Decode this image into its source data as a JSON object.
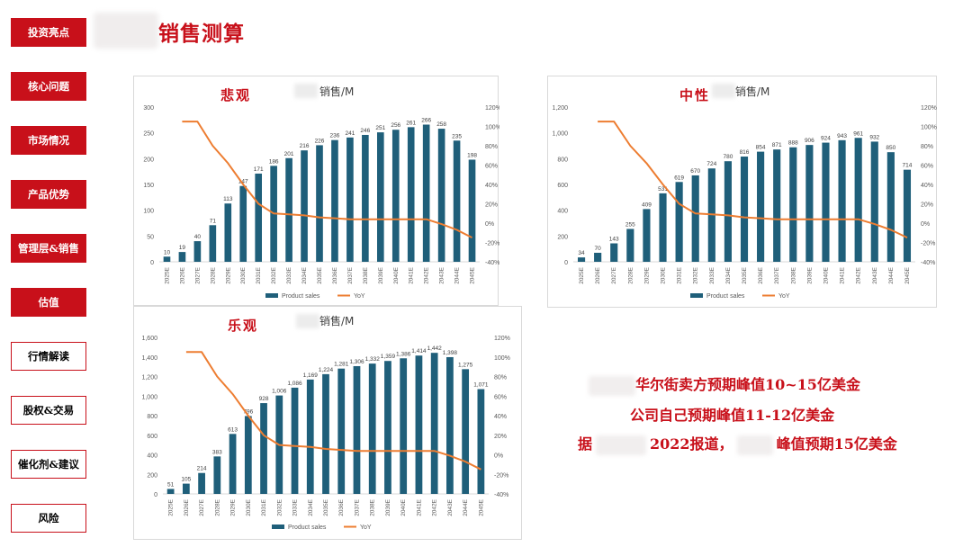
{
  "page": {
    "title": "销售测算"
  },
  "nav": {
    "items": [
      {
        "label": "投资亮点",
        "style": "filled"
      },
      {
        "label": "核心问题",
        "style": "filled"
      },
      {
        "label": "市场情况",
        "style": "filled"
      },
      {
        "label": "产品优势",
        "style": "filled"
      },
      {
        "label": "管理层&销售",
        "style": "filled"
      },
      {
        "label": "估值",
        "style": "filled"
      },
      {
        "label": "行情解读",
        "style": "outline"
      },
      {
        "label": "股权&交易",
        "style": "outline"
      },
      {
        "label": "催化剂&建议",
        "style": "outline"
      },
      {
        "label": "风险",
        "style": "outline"
      }
    ]
  },
  "notes": {
    "line1": "华尔街卖方预期峰值10~15亿美金",
    "line2": "公司自己预期峰值11-12亿美金",
    "line3_prefix": "据",
    "line3_mid": "2022报道，",
    "line3_suffix": "峰值预期15亿美金"
  },
  "colors": {
    "accent": "#c8101a",
    "bar": "#1f5f7a",
    "line": "#ed7d31"
  },
  "chart_data": [
    {
      "id": "pessimistic",
      "scenario": "悲观",
      "type": "bar",
      "title": "销售/M",
      "categories": [
        "2025E",
        "2026E",
        "2027E",
        "2028E",
        "2029E",
        "2030E",
        "2031E",
        "2032E",
        "2033E",
        "2034E",
        "2035E",
        "2036E",
        "2037E",
        "2038E",
        "2039E",
        "2040E",
        "2041E",
        "2042E",
        "2043E",
        "2044E",
        "2045E"
      ],
      "values": [
        10,
        19,
        40,
        71,
        113,
        147,
        171,
        186,
        201,
        216,
        226,
        236,
        241,
        246,
        251,
        256,
        261,
        266,
        258,
        235,
        198
      ],
      "yoy": [
        null,
        105,
        105,
        80,
        62,
        40,
        20,
        10,
        9,
        8,
        6,
        5,
        4,
        4,
        4,
        4,
        4,
        4,
        -1,
        -7,
        -15
      ],
      "ylim": [
        0,
        300
      ],
      "yticks": [
        0,
        50,
        100,
        150,
        200,
        250,
        300
      ],
      "y2lim": [
        -40,
        120
      ],
      "y2ticks": [
        -40,
        -20,
        0,
        20,
        40,
        60,
        80,
        100,
        120
      ],
      "legend": [
        "Product sales",
        "YoY"
      ]
    },
    {
      "id": "neutral",
      "scenario": "中性",
      "type": "bar",
      "title": "销售/M",
      "categories": [
        "2025E",
        "2026E",
        "2027E",
        "2028E",
        "2029E",
        "2030E",
        "2031E",
        "2032E",
        "2033E",
        "2034E",
        "2035E",
        "2036E",
        "2037E",
        "2038E",
        "2039E",
        "2040E",
        "2041E",
        "2042E",
        "2043E",
        "2044E",
        "2045E"
      ],
      "values": [
        34,
        70,
        143,
        255,
        409,
        531,
        619,
        670,
        724,
        780,
        816,
        854,
        871,
        888,
        906,
        924,
        943,
        961,
        932,
        850,
        714
      ],
      "yoy": [
        null,
        105,
        105,
        80,
        62,
        40,
        20,
        10,
        9,
        8,
        6,
        5,
        4,
        4,
        4,
        4,
        4,
        4,
        -1,
        -7,
        -15
      ],
      "ylim": [
        0,
        1200
      ],
      "yticks": [
        0,
        200,
        400,
        600,
        800,
        1000,
        1200
      ],
      "y2lim": [
        -40,
        120
      ],
      "y2ticks": [
        -40,
        -20,
        0,
        20,
        40,
        60,
        80,
        100,
        120
      ],
      "legend": [
        "Product sales",
        "YoY"
      ]
    },
    {
      "id": "optimistic",
      "scenario": "乐观",
      "type": "bar",
      "title": "销售/M",
      "categories": [
        "2025E",
        "2026E",
        "2027E",
        "2028E",
        "2029E",
        "2030E",
        "2031E",
        "2032E",
        "2033E",
        "2034E",
        "2035E",
        "2036E",
        "2037E",
        "2038E",
        "2039E",
        "2040E",
        "2041E",
        "2042E",
        "2043E",
        "2044E",
        "2045E"
      ],
      "values": [
        51,
        105,
        214,
        383,
        613,
        796,
        928,
        1006,
        1086,
        1169,
        1224,
        1281,
        1306,
        1332,
        1359,
        1386,
        1414,
        1442,
        1398,
        1275,
        1071
      ],
      "value_labels": [
        "51",
        "105",
        "214",
        "383",
        "613",
        "796",
        "928",
        "1,006",
        "1,086",
        "1,169",
        "1,224",
        "1,281",
        "1,306",
        "1,332",
        "1,359",
        "1,386",
        "1,414",
        "1,442",
        "1,398",
        "1,275",
        "1,071"
      ],
      "yoy": [
        null,
        105,
        105,
        80,
        62,
        40,
        20,
        10,
        9,
        8,
        6,
        5,
        4,
        4,
        4,
        4,
        4,
        4,
        -1,
        -7,
        -15
      ],
      "ylim": [
        0,
        1600
      ],
      "yticks": [
        0,
        200,
        400,
        600,
        800,
        1000,
        1200,
        1400,
        1600
      ],
      "y2lim": [
        -40,
        120
      ],
      "y2ticks": [
        -40,
        -20,
        0,
        20,
        40,
        60,
        80,
        100,
        120
      ],
      "legend": [
        "Product sales",
        "YoY"
      ]
    }
  ]
}
